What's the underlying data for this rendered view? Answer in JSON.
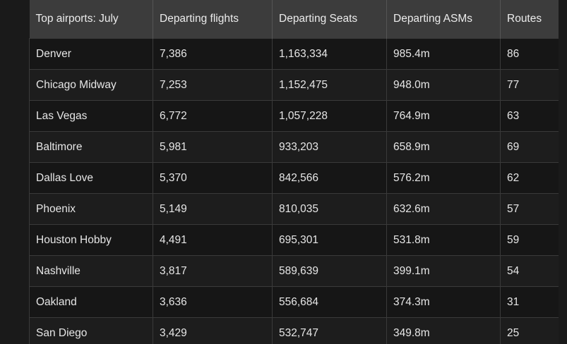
{
  "table": {
    "headers": [
      "Top airports: July",
      "Departing flights",
      "Departing Seats",
      "Departing ASMs",
      "Routes"
    ],
    "rows": [
      [
        "Denver",
        "7,386",
        "1,163,334",
        "985.4m",
        "86"
      ],
      [
        "Chicago Midway",
        "7,253",
        "1,152,475",
        "948.0m",
        "77"
      ],
      [
        "Las Vegas",
        "6,772",
        "1,057,228",
        "764.9m",
        "63"
      ],
      [
        "Baltimore",
        "5,981",
        "933,203",
        "658.9m",
        "69"
      ],
      [
        "Dallas Love",
        "5,370",
        "842,566",
        "576.2m",
        "62"
      ],
      [
        "Phoenix",
        "5,149",
        "810,035",
        "632.6m",
        "57"
      ],
      [
        "Houston Hobby",
        "4,491",
        "695,301",
        "531.8m",
        "59"
      ],
      [
        "Nashville",
        "3,817",
        "589,639",
        "399.1m",
        "54"
      ],
      [
        "Oakland",
        "3,636",
        "556,684",
        "374.3m",
        "31"
      ],
      [
        "San Diego",
        "3,429",
        "532,747",
        "349.8m",
        "25"
      ]
    ]
  }
}
